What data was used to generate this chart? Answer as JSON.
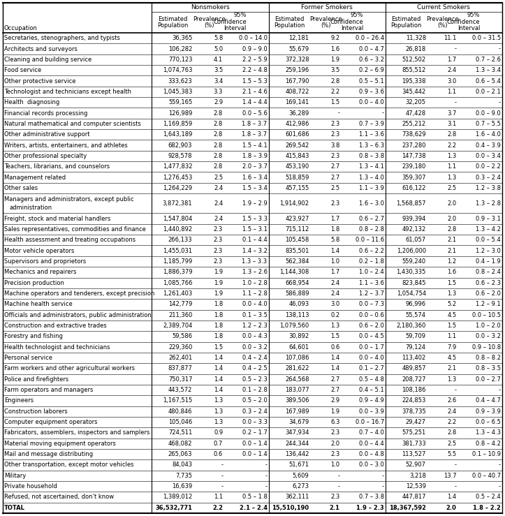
{
  "rows": [
    [
      "Secretaries, stenographers, and typists",
      "36,365",
      "5.8",
      "0.0 – 14.0",
      "12,181",
      "9.2",
      "0.0 – 26.4",
      "11,328",
      "11.1",
      "0.0 – 31.5"
    ],
    [
      "Architects and surveyors",
      "106,282",
      "5.0",
      "0.9 – 9.0",
      "55,679",
      "1.6",
      "0.0 – 4.7",
      "26,818",
      "-",
      "-"
    ],
    [
      "Cleaning and building service",
      "770,123",
      "4.1",
      "2.2 – 5.9",
      "372,328",
      "1.9",
      "0.6 – 3.2",
      "512,502",
      "1.7",
      "0.7 – 2.6"
    ],
    [
      "Food service",
      "1,074,763",
      "3.5",
      "2.2 – 4.8",
      "259,196",
      "3.5",
      "0.2 – 6.9",
      "855,512",
      "2.4",
      "1.3 – 3.4"
    ],
    [
      "Other protective service",
      "333,623",
      "3.4",
      "1.5 – 5.3",
      "167,790",
      "2.8",
      "0.5 – 5.1",
      "195,338",
      "3.0",
      "0.6 – 5.4"
    ],
    [
      "Technologist and technicians except health",
      "1,045,383",
      "3.3",
      "2.1 – 4.6",
      "408,722",
      "2.2",
      "0.9 – 3.6",
      "345,442",
      "1.1",
      "0.0 – 2.1"
    ],
    [
      "Health  diagnosing",
      "559,165",
      "2.9",
      "1.4 – 4.4",
      "169,141",
      "1.5",
      "0.0 – 4.0",
      "32,205",
      "-",
      "-"
    ],
    [
      "Financial records processing",
      "126,989",
      "2.8",
      "0.0 – 5.6",
      "36,289",
      "-",
      "-",
      "47,428",
      "3.7",
      "0.0 – 9.0"
    ],
    [
      "Natural mathematical and computer scientists",
      "1,169,859",
      "2.8",
      "1.8 – 3.7",
      "412,986",
      "2.3",
      "0.7 – 3.9",
      "255,212",
      "3.1",
      "0.7 – 5.5"
    ],
    [
      "Other administrative support",
      "1,643,189",
      "2.8",
      "1.8 – 3.7",
      "601,686",
      "2.3",
      "1.1 – 3.6",
      "738,629",
      "2.8",
      "1.6 – 4.0"
    ],
    [
      "Writers, artists, entertainers, and athletes",
      "682,903",
      "2.8",
      "1.5 – 4.1",
      "269,542",
      "3.8",
      "1.3 – 6.3",
      "237,280",
      "2.2",
      "0.4 – 3.9"
    ],
    [
      "Other professional specialty",
      "928,578",
      "2.8",
      "1.8 – 3.9",
      "415,843",
      "2.3",
      "0.8 – 3.8",
      "147,738",
      "1.3",
      "0.0 – 3.4"
    ],
    [
      "Teachers, librarians, and counselors",
      "1,477,832",
      "2.8",
      "2.0 – 3.7",
      "453,190",
      "2.7",
      "1.3 – 4.1",
      "239,180",
      "1.1",
      "0.0 – 2.2"
    ],
    [
      "Management related",
      "1,276,453",
      "2.5",
      "1.6 – 3.4",
      "518,859",
      "2.7",
      "1.3 – 4.0",
      "359,307",
      "1.3",
      "0.3 – 2.4"
    ],
    [
      "Other sales",
      "1,264,229",
      "2.4",
      "1.5 – 3.4",
      "457,155",
      "2.5",
      "1.1 – 3.9",
      "616,122",
      "2.5",
      "1.2 – 3.8"
    ],
    [
      "Managers and administrators, except public\nadministration",
      "3,872,381",
      "2.4",
      "1.9 – 2.9",
      "1,914,902",
      "2.3",
      "1.6 – 3.0",
      "1,568,857",
      "2.0",
      "1.3 – 2.8"
    ],
    [
      "Freight, stock and material handlers",
      "1,547,804",
      "2.4",
      "1.5 – 3.3",
      "423,927",
      "1.7",
      "0.6 – 2.7",
      "939,394",
      "2.0",
      "0.9 – 3.1"
    ],
    [
      "Sales representatives, commodities and finance",
      "1,440,892",
      "2.3",
      "1.5 – 3.1",
      "715,112",
      "1.8",
      "0.8 – 2.8",
      "492,132",
      "2.8",
      "1.3 – 4.2"
    ],
    [
      "Health assessment and treating occupations",
      "266,133",
      "2.3",
      "0.1 – 4.4",
      "105,458",
      "5.8",
      "0.0 – 11.6",
      "61,057",
      "2.1",
      "0.0 – 5.4"
    ],
    [
      "Motor vehicle operators",
      "1,455,031",
      "2.3",
      "1.4 – 3.2",
      "835,501",
      "1.4",
      "0.6 – 2.2",
      "1,206,000",
      "2.1",
      "1.2 – 3.0"
    ],
    [
      "Supervisors and proprietors",
      "1,185,799",
      "2.3",
      "1.3 – 3.3",
      "562,384",
      "1.0",
      "0.2 – 1.8",
      "559,240",
      "1.2",
      "0.4 – 1.9"
    ],
    [
      "Mechanics and repairers",
      "1,886,379",
      "1.9",
      "1.3 – 2.6",
      "1,144,308",
      "1.7",
      "1.0 – 2.4",
      "1,430,335",
      "1.6",
      "0.8 – 2.4"
    ],
    [
      "Precision production",
      "1,085,766",
      "1.9",
      "1.0 – 2.8",
      "668,954",
      "2.4",
      "1.1 – 3.6",
      "823,845",
      "1.5",
      "0.6 – 2.3"
    ],
    [
      "Machine operators and tenderers, except precision",
      "1,261,403",
      "1.9",
      "1.1 – 2.8",
      "586,889",
      "2.4",
      "1.2 – 3.7",
      "1,054,754",
      "1.3",
      "0.6 – 2.0"
    ],
    [
      "Machine health service",
      "142,779",
      "1.8",
      "0.0 – 4.0",
      "46,093",
      "3.0",
      "0.0 – 7.3",
      "96,996",
      "5.2",
      "1.2 – 9.1"
    ],
    [
      "Officials and administrators, public administration",
      "211,360",
      "1.8",
      "0.1 – 3.5",
      "138,113",
      "0.2",
      "0.0 – 0.6",
      "55,574",
      "4.5",
      "0.0 – 10.5"
    ],
    [
      "Construction and extractive trades",
      "2,389,704",
      "1.8",
      "1.2 – 2.3",
      "1,079,560",
      "1.3",
      "0.6 – 2.0",
      "2,180,360",
      "1.5",
      "1.0 – 2.0"
    ],
    [
      "Forestry and fishing",
      "59,586",
      "1.8",
      "0.0 – 4.3",
      "30,892",
      "1.5",
      "0.0 – 4.5",
      "59,709",
      "1.1",
      "0.0 – 3.2"
    ],
    [
      "Health technologist and technicians",
      "229,360",
      "1.5",
      "0.0 – 3.2",
      "64,601",
      "0.6",
      "0.0 – 1.7",
      "79,124",
      "7.9",
      "0.9 – 10.8"
    ],
    [
      "Personal service",
      "262,401",
      "1.4",
      "0.4 – 2.4",
      "107,086",
      "1.4",
      "0.0 – 4.0",
      "113,402",
      "4.5",
      "0.8 – 8.2"
    ],
    [
      "Farm workers and other agricultural workers",
      "837,877",
      "1.4",
      "0.4 – 2.5",
      "281,622",
      "1.4",
      "0.1 – 2.7",
      "489,857",
      "2.1",
      "0.8 – 3.5"
    ],
    [
      "Police and firefighters",
      "750,317",
      "1.4",
      "0.5 – 2.3",
      "264,568",
      "2.7",
      "0.5 – 4.8",
      "208,727",
      "1.3",
      "0.0 – 2.7"
    ],
    [
      "Farm operators and managers",
      "443,572",
      "1.4",
      "0.1 – 2.8",
      "183,077",
      "2.7",
      "0.4 – 5.1",
      "108,186",
      "-",
      "-"
    ],
    [
      "Engineers",
      "1,167,515",
      "1.3",
      "0.5 – 2.0",
      "389,506",
      "2.9",
      "0.9 – 4.9",
      "224,853",
      "2.6",
      "0.4 – 4.7"
    ],
    [
      "Construction laborers",
      "480,846",
      "1.3",
      "0.3 – 2.4",
      "167,989",
      "1.9",
      "0.0 – 3.9",
      "378,735",
      "2.4",
      "0.9 – 3.9"
    ],
    [
      "Computer equipment operators",
      "105,046",
      "1.3",
      "0.0 – 3.3",
      "34,679",
      "6.3",
      "0.0 – 16.7",
      "29,427",
      "2.2",
      "0.0 – 6.5"
    ],
    [
      "Fabricators, assemblers, inspectors and samplers",
      "724,511",
      "0.9",
      "0.2 – 1.7",
      "347,934",
      "2.3",
      "0.7 – 4.0",
      "575,251",
      "2.8",
      "1.3 – 4.3"
    ],
    [
      "Material moving equipment operators",
      "468,082",
      "0.7",
      "0.0 – 1.4",
      "244,344",
      "2.0",
      "0.0 – 4.4",
      "381,733",
      "2.5",
      "0.8 – 4.2"
    ],
    [
      "Mail and message distributing",
      "265,063",
      "0.6",
      "0.0 – 1.4",
      "136,442",
      "2.3",
      "0.0 – 4.8",
      "113,527",
      "5.5",
      "0.1 – 10.9"
    ],
    [
      "Other transportation, except motor vehicles",
      "84,043",
      "-",
      "-",
      "51,671",
      "1.0",
      "0.0 – 3.0",
      "52,907",
      "-",
      "-"
    ],
    [
      "Military",
      "7,735",
      "-",
      "-",
      "5,609",
      "-",
      "-",
      "3,218",
      "13.7",
      "0.0 – 40.7"
    ],
    [
      "Private household",
      "16,639",
      "-",
      "-",
      "6,273",
      "-",
      "-",
      "12,539",
      "-",
      "-"
    ],
    [
      "Refused, not ascertained, don’t know",
      "1,389,012",
      "1.1",
      "0.5 – 1.8",
      "362,111",
      "2.3",
      "0.7 – 3.8",
      "447,817",
      "1.4",
      "0.5 – 2.4"
    ],
    [
      "TOTAL",
      "36,532,771",
      "2.2",
      "2.1 – 2.4",
      "15,510,190",
      "2.1",
      "1.9 – 2.3",
      "18,367,592",
      "2.0",
      "1.8 – 2.2"
    ]
  ],
  "col_widths_pts": [
    185,
    52,
    38,
    55,
    52,
    38,
    55,
    52,
    38,
    55
  ],
  "bg_color": "#ffffff",
  "font_size": 6.0,
  "header_font_size": 6.5
}
